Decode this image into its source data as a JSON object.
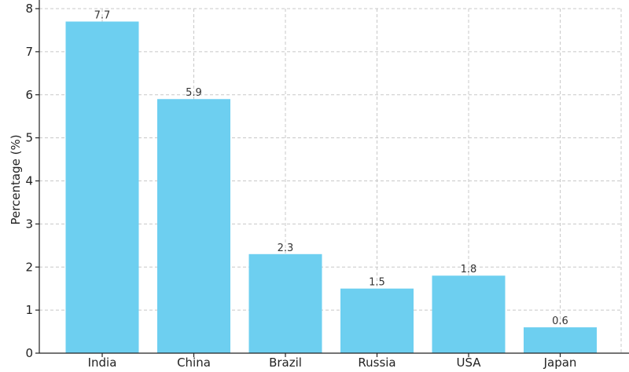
{
  "chart_data": {
    "type": "bar",
    "title": "",
    "xlabel": "",
    "ylabel": "Percentage (%)",
    "categories": [
      "India",
      "China",
      "Brazil",
      "Russia",
      "USA",
      "Japan"
    ],
    "values": [
      7.7,
      5.9,
      2.3,
      1.5,
      1.8,
      0.6
    ],
    "data_labels": [
      "7.7",
      "5.9",
      "2.3",
      "1.5",
      "1.8",
      "0.6"
    ],
    "ylim": [
      0,
      8
    ],
    "yticks": [
      "0",
      "1",
      "2",
      "3",
      "4",
      "5",
      "6",
      "7",
      "8"
    ],
    "grid": true,
    "bar_color": "#6dcff0"
  }
}
